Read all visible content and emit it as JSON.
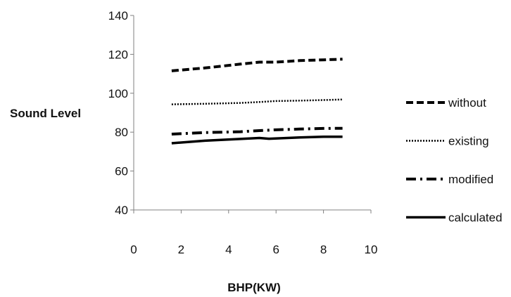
{
  "chart_data": {
    "type": "line",
    "title": "",
    "xlabel": "BHP(KW)",
    "ylabel": "Sound Level",
    "xlim": [
      0,
      10
    ],
    "ylim": [
      40,
      140
    ],
    "xticks": [
      "0",
      "2",
      "4",
      "6",
      "8",
      "10"
    ],
    "yticks": [
      "40",
      "60",
      "80",
      "100",
      "120",
      "140"
    ],
    "grid": false,
    "legend": "right",
    "series": [
      {
        "name": "without",
        "style": "dashed",
        "color": "#000000",
        "x": [
          1.6,
          3.0,
          4.5,
          5.3,
          6.0,
          7.0,
          8.0,
          8.8
        ],
        "y": [
          111.5,
          113,
          115,
          116,
          116,
          116.8,
          117.2,
          117.5
        ]
      },
      {
        "name": "existing",
        "style": "dotted",
        "color": "#000000",
        "x": [
          1.6,
          3.0,
          4.5,
          5.3,
          6.0,
          7.0,
          8.0,
          8.8
        ],
        "y": [
          94.3,
          94.6,
          95,
          95.5,
          96,
          96.2,
          96.5,
          96.8
        ]
      },
      {
        "name": "modified",
        "style": "dash-dot",
        "color": "#000000",
        "x": [
          1.6,
          3.0,
          4.5,
          5.3,
          6.0,
          7.0,
          8.0,
          8.8
        ],
        "y": [
          79,
          79.8,
          80.2,
          80.8,
          81.2,
          81.6,
          81.9,
          82
        ]
      },
      {
        "name": "calculated",
        "style": "solid",
        "color": "#000000",
        "x": [
          1.6,
          3.0,
          4.5,
          5.3,
          5.7,
          7.0,
          8.0,
          8.8
        ],
        "y": [
          74.3,
          75.6,
          76.5,
          77,
          76.6,
          77.3,
          77.6,
          77.6
        ]
      }
    ]
  }
}
